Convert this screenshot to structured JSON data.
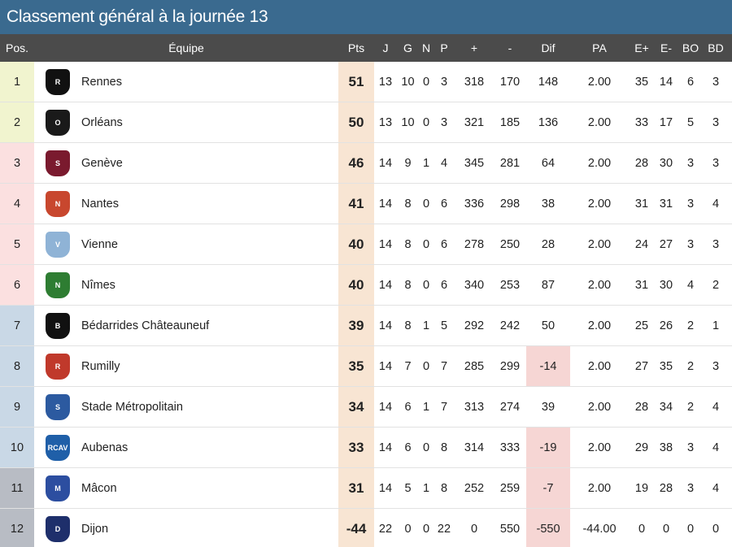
{
  "title": "Classement général à la journée 13",
  "headers": {
    "pos": "Pos.",
    "team": "Équipe",
    "pts": "Pts",
    "j": "J",
    "g": "G",
    "n": "N",
    "p": "P",
    "plus": "+",
    "minus": "-",
    "dif": "Dif",
    "pa": "PA",
    "ep": "E+",
    "em": "E-",
    "bo": "BO",
    "bd": "BD"
  },
  "colors": {
    "title_bg": "#3a6a8f",
    "header_bg": "#4b4b4b",
    "pts_bg": "#f8e5d3",
    "neg_dif_bg": "#f6d6d4",
    "zone_qualif": "#f1f4cf",
    "zone_playoff": "#fbe0e0",
    "zone_mid": "#c9d8e6",
    "zone_low": "#b8bcc4"
  },
  "rows": [
    {
      "pos": "1",
      "team": "Rennes",
      "pts": "51",
      "j": "13",
      "g": "10",
      "n": "0",
      "p": "3",
      "plus": "318",
      "minus": "170",
      "dif": "148",
      "pa": "2.00",
      "ep": "35",
      "em": "14",
      "bo": "6",
      "bd": "3",
      "zone": "zone_qualif",
      "logo_icon": "rennes-logo",
      "logo_color": "#111111",
      "logo_text": "R"
    },
    {
      "pos": "2",
      "team": "Orléans",
      "pts": "50",
      "j": "13",
      "g": "10",
      "n": "0",
      "p": "3",
      "plus": "321",
      "minus": "185",
      "dif": "136",
      "pa": "2.00",
      "ep": "33",
      "em": "17",
      "bo": "5",
      "bd": "3",
      "zone": "zone_qualif",
      "logo_icon": "orleans-logo",
      "logo_color": "#1a1a1a",
      "logo_text": "O"
    },
    {
      "pos": "3",
      "team": "Genève",
      "pts": "46",
      "j": "14",
      "g": "9",
      "n": "1",
      "p": "4",
      "plus": "345",
      "minus": "281",
      "dif": "64",
      "pa": "2.00",
      "ep": "28",
      "em": "30",
      "bo": "3",
      "bd": "3",
      "zone": "zone_playoff",
      "logo_icon": "geneve-logo",
      "logo_color": "#7a1a2e",
      "logo_text": "S"
    },
    {
      "pos": "4",
      "team": "Nantes",
      "pts": "41",
      "j": "14",
      "g": "8",
      "n": "0",
      "p": "6",
      "plus": "336",
      "minus": "298",
      "dif": "38",
      "pa": "2.00",
      "ep": "31",
      "em": "31",
      "bo": "3",
      "bd": "4",
      "zone": "zone_playoff",
      "logo_icon": "nantes-logo",
      "logo_color": "#c8472e",
      "logo_text": "N"
    },
    {
      "pos": "5",
      "team": "Vienne",
      "pts": "40",
      "j": "14",
      "g": "8",
      "n": "0",
      "p": "6",
      "plus": "278",
      "minus": "250",
      "dif": "28",
      "pa": "2.00",
      "ep": "24",
      "em": "27",
      "bo": "3",
      "bd": "3",
      "zone": "zone_playoff",
      "logo_icon": "vienne-logo",
      "logo_color": "#8fb3d6",
      "logo_text": "V"
    },
    {
      "pos": "6",
      "team": "Nîmes",
      "pts": "40",
      "j": "14",
      "g": "8",
      "n": "0",
      "p": "6",
      "plus": "340",
      "minus": "253",
      "dif": "87",
      "pa": "2.00",
      "ep": "31",
      "em": "30",
      "bo": "4",
      "bd": "2",
      "zone": "zone_playoff",
      "logo_icon": "nimes-logo",
      "logo_color": "#2e7d32",
      "logo_text": "N"
    },
    {
      "pos": "7",
      "team": "Bédarrides Châteauneuf",
      "pts": "39",
      "j": "14",
      "g": "8",
      "n": "1",
      "p": "5",
      "plus": "292",
      "minus": "242",
      "dif": "50",
      "pa": "2.00",
      "ep": "25",
      "em": "26",
      "bo": "2",
      "bd": "1",
      "zone": "zone_mid",
      "logo_icon": "bedarrides-logo",
      "logo_color": "#111111",
      "logo_text": "B"
    },
    {
      "pos": "8",
      "team": "Rumilly",
      "pts": "35",
      "j": "14",
      "g": "7",
      "n": "0",
      "p": "7",
      "plus": "285",
      "minus": "299",
      "dif": "-14",
      "pa": "2.00",
      "ep": "27",
      "em": "35",
      "bo": "2",
      "bd": "3",
      "zone": "zone_mid",
      "logo_icon": "rumilly-logo",
      "logo_color": "#c0392b",
      "logo_text": "R"
    },
    {
      "pos": "9",
      "team": "Stade Métropolitain",
      "pts": "34",
      "j": "14",
      "g": "6",
      "n": "1",
      "p": "7",
      "plus": "313",
      "minus": "274",
      "dif": "39",
      "pa": "2.00",
      "ep": "28",
      "em": "34",
      "bo": "2",
      "bd": "4",
      "zone": "zone_mid",
      "logo_icon": "stade-logo",
      "logo_color": "#2c5aa0",
      "logo_text": "S"
    },
    {
      "pos": "10",
      "team": "Aubenas",
      "pts": "33",
      "j": "14",
      "g": "6",
      "n": "0",
      "p": "8",
      "plus": "314",
      "minus": "333",
      "dif": "-19",
      "pa": "2.00",
      "ep": "29",
      "em": "38",
      "bo": "3",
      "bd": "4",
      "zone": "zone_mid",
      "logo_icon": "aubenas-logo",
      "logo_color": "#1f5fa8",
      "logo_text": "RCAV"
    },
    {
      "pos": "11",
      "team": "Mâcon",
      "pts": "31",
      "j": "14",
      "g": "5",
      "n": "1",
      "p": "8",
      "plus": "252",
      "minus": "259",
      "dif": "-7",
      "pa": "2.00",
      "ep": "19",
      "em": "28",
      "bo": "3",
      "bd": "4",
      "zone": "zone_low",
      "logo_icon": "macon-logo",
      "logo_color": "#2c4ea0",
      "logo_text": "M"
    },
    {
      "pos": "12",
      "team": "Dijon",
      "pts": "-44",
      "j": "22",
      "g": "0",
      "n": "0",
      "p": "22",
      "plus": "0",
      "minus": "550",
      "dif": "-550",
      "pa": "-44.00",
      "ep": "0",
      "em": "0",
      "bo": "0",
      "bd": "0",
      "zone": "zone_low",
      "logo_icon": "dijon-logo",
      "logo_color": "#1e2f6b",
      "logo_text": "D"
    }
  ]
}
